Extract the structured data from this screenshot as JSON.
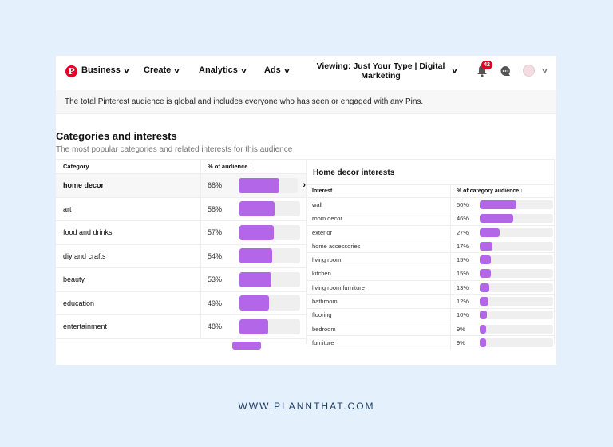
{
  "nav": {
    "business": "Business",
    "create": "Create",
    "analytics": "Analytics",
    "ads": "Ads",
    "viewing": "Viewing: Just Your Type | Digital Marketing",
    "notifications": "42",
    "logo": "P"
  },
  "banner": "The total Pinterest audience is global and includes everyone who has seen or engaged with any Pins.",
  "section": {
    "title": "Categories and interests",
    "subtitle": "The most popular categories and related interests for this audience"
  },
  "categories": {
    "headers": [
      "Category",
      "% of audience ↓"
    ],
    "rows": [
      {
        "name": "home decor",
        "pct": "68%",
        "value": 68
      },
      {
        "name": "art",
        "pct": "58%",
        "value": 58
      },
      {
        "name": "food and drinks",
        "pct": "57%",
        "value": 57
      },
      {
        "name": "diy and crafts",
        "pct": "54%",
        "value": 54
      },
      {
        "name": "beauty",
        "pct": "53%",
        "value": 53
      },
      {
        "name": "education",
        "pct": "49%",
        "value": 49
      },
      {
        "name": "entertainment",
        "pct": "48%",
        "value": 48
      }
    ]
  },
  "interests": {
    "title": "Home decor interests",
    "headers": [
      "Interest",
      "% of category audience ↓"
    ],
    "rows": [
      {
        "name": "wall",
        "pct": "50%",
        "value": 50
      },
      {
        "name": "room decor",
        "pct": "46%",
        "value": 46
      },
      {
        "name": "exterior",
        "pct": "27%",
        "value": 27
      },
      {
        "name": "home accessories",
        "pct": "17%",
        "value": 17
      },
      {
        "name": "living room",
        "pct": "15%",
        "value": 15
      },
      {
        "name": "kitchen",
        "pct": "15%",
        "value": 15
      },
      {
        "name": "living room furniture",
        "pct": "13%",
        "value": 13
      },
      {
        "name": "bathroom",
        "pct": "12%",
        "value": 12
      },
      {
        "name": "flooring",
        "pct": "10%",
        "value": 10
      },
      {
        "name": "bedroom",
        "pct": "9%",
        "value": 9
      },
      {
        "name": "furniture",
        "pct": "9%",
        "value": 9
      }
    ]
  },
  "colors": {
    "bar": "#b366e8",
    "track": "#efefef",
    "brand": "#e60023"
  },
  "footer": "WWW.PLANNTHAT.COM"
}
